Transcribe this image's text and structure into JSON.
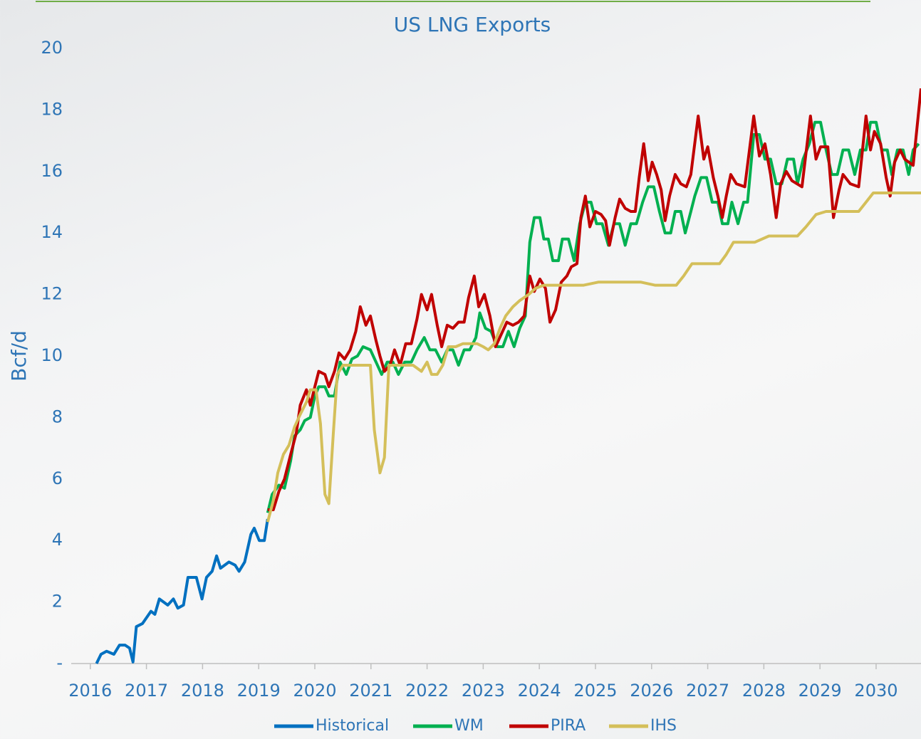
{
  "chart_data": {
    "type": "line",
    "title": "US LNG Exports",
    "y_label": "Bcf/d",
    "xlim": [
      2015.66,
      2030.8
    ],
    "ylim": [
      0,
      20
    ],
    "xticks": [
      2016,
      2017,
      2018,
      2019,
      2020,
      2021,
      2022,
      2023,
      2024,
      2025,
      2026,
      2027,
      2028,
      2029,
      2030
    ],
    "yticks": [
      {
        "value": 0,
        "label": "-"
      },
      2,
      4,
      6,
      8,
      10,
      12,
      14,
      16,
      18,
      20
    ],
    "grid": false,
    "legend": "bottom",
    "series": [
      {
        "name": "Historical",
        "color": "#0070c0",
        "x": [
          2016.11,
          2016.19,
          2016.29,
          2016.42,
          2016.52,
          2016.62,
          2016.7,
          2016.76,
          2016.82,
          2016.93,
          2017.08,
          2017.15,
          2017.23,
          2017.38,
          2017.48,
          2017.56,
          2017.66,
          2017.74,
          2017.89,
          2017.99,
          2018.07,
          2018.17,
          2018.25,
          2018.32,
          2018.47,
          2018.58,
          2018.65,
          2018.75,
          2018.86,
          2018.92,
          2019.01,
          2019.1,
          2019.16
        ],
        "values": [
          0,
          0.3,
          0.4,
          0.3,
          0.6,
          0.6,
          0.5,
          0.05,
          1.2,
          1.3,
          1.7,
          1.6,
          2.1,
          1.9,
          2.1,
          1.8,
          1.9,
          2.8,
          2.8,
          2.1,
          2.8,
          3.0,
          3.5,
          3.1,
          3.3,
          3.2,
          3.0,
          3.3,
          4.2,
          4.4,
          4.0,
          4.0,
          4.7
        ]
      },
      {
        "name": "WM",
        "color": "#00b050",
        "x": [
          2019.16,
          2019.24,
          2019.36,
          2019.46,
          2019.57,
          2019.64,
          2019.74,
          2019.82,
          2019.92,
          2020.0,
          2020.07,
          2020.18,
          2020.25,
          2020.35,
          2020.45,
          2020.56,
          2020.66,
          2020.76,
          2020.86,
          2020.99,
          2021.09,
          2021.19,
          2021.29,
          2021.39,
          2021.49,
          2021.6,
          2021.72,
          2021.82,
          2021.95,
          2022.05,
          2022.15,
          2022.26,
          2022.36,
          2022.46,
          2022.56,
          2022.66,
          2022.76,
          2022.87,
          2022.94,
          2023.04,
          2023.14,
          2023.25,
          2023.35,
          2023.45,
          2023.55,
          2023.65,
          2023.75,
          2023.83,
          2023.91,
          2024.01,
          2024.08,
          2024.16,
          2024.24,
          2024.34,
          2024.41,
          2024.52,
          2024.62,
          2024.72,
          2024.82,
          2024.92,
          2025.02,
          2025.12,
          2025.23,
          2025.33,
          2025.43,
          2025.53,
          2025.63,
          2025.73,
          2025.84,
          2025.94,
          2026.04,
          2026.14,
          2026.24,
          2026.34,
          2026.42,
          2026.52,
          2026.6,
          2026.7,
          2026.77,
          2026.88,
          2026.98,
          2027.08,
          2027.18,
          2027.26,
          2027.36,
          2027.43,
          2027.54,
          2027.64,
          2027.71,
          2027.82,
          2027.92,
          2028.02,
          2028.12,
          2028.22,
          2028.32,
          2028.42,
          2028.53,
          2028.6,
          2028.7,
          2028.81,
          2028.91,
          2029.01,
          2029.11,
          2029.21,
          2029.31,
          2029.41,
          2029.51,
          2029.62,
          2029.72,
          2029.82,
          2029.9,
          2030.0,
          2030.1,
          2030.2,
          2030.28,
          2030.38,
          2030.48,
          2030.58,
          2030.66,
          2030.76
        ],
        "values": [
          4.9,
          5.5,
          5.8,
          5.7,
          6.6,
          7.4,
          7.6,
          7.9,
          8.0,
          8.7,
          9.0,
          9.0,
          8.7,
          8.7,
          9.8,
          9.4,
          9.9,
          10.0,
          10.3,
          10.2,
          9.8,
          9.4,
          9.8,
          9.8,
          9.4,
          9.8,
          9.8,
          10.2,
          10.6,
          10.2,
          10.2,
          9.8,
          10.2,
          10.2,
          9.7,
          10.2,
          10.2,
          10.6,
          11.4,
          10.9,
          10.8,
          10.3,
          10.3,
          10.8,
          10.3,
          10.9,
          11.3,
          13.7,
          14.5,
          14.5,
          13.8,
          13.8,
          13.1,
          13.1,
          13.8,
          13.8,
          13.1,
          14.3,
          15.0,
          15.0,
          14.3,
          14.3,
          13.6,
          14.3,
          14.3,
          13.6,
          14.3,
          14.3,
          15.0,
          15.5,
          15.5,
          14.7,
          14.0,
          14.0,
          14.7,
          14.7,
          14.0,
          14.7,
          15.2,
          15.8,
          15.8,
          15.0,
          15.0,
          14.3,
          14.3,
          15.0,
          14.3,
          15.0,
          15.0,
          17.2,
          17.2,
          16.4,
          16.4,
          15.6,
          15.6,
          16.4,
          16.4,
          15.6,
          16.4,
          16.9,
          17.6,
          17.6,
          16.7,
          15.9,
          15.9,
          16.7,
          16.7,
          15.9,
          16.7,
          16.7,
          17.6,
          17.6,
          16.7,
          16.7,
          15.9,
          16.7,
          16.7,
          15.9,
          16.7,
          16.9
        ]
      },
      {
        "name": "PIRA",
        "color": "#c00000",
        "x": [
          2019.16,
          2019.26,
          2019.36,
          2019.46,
          2019.57,
          2019.67,
          2019.74,
          2019.85,
          2019.92,
          2020.0,
          2020.07,
          2020.18,
          2020.25,
          2020.35,
          2020.43,
          2020.53,
          2020.63,
          2020.73,
          2020.81,
          2020.91,
          2020.99,
          2021.09,
          2021.16,
          2021.24,
          2021.34,
          2021.42,
          2021.52,
          2021.62,
          2021.72,
          2021.82,
          2021.9,
          2022.0,
          2022.08,
          2022.18,
          2022.26,
          2022.36,
          2022.46,
          2022.56,
          2022.66,
          2022.74,
          2022.84,
          2022.92,
          2023.02,
          2023.12,
          2023.22,
          2023.32,
          2023.42,
          2023.53,
          2023.63,
          2023.73,
          2023.83,
          2023.91,
          2024.01,
          2024.11,
          2024.19,
          2024.29,
          2024.39,
          2024.49,
          2024.57,
          2024.67,
          2024.74,
          2024.82,
          2024.9,
          2025.0,
          2025.1,
          2025.18,
          2025.25,
          2025.35,
          2025.43,
          2025.53,
          2025.63,
          2025.71,
          2025.78,
          2025.86,
          2025.94,
          2026.01,
          2026.09,
          2026.17,
          2026.24,
          2026.32,
          2026.42,
          2026.52,
          2026.62,
          2026.7,
          2026.83,
          2026.93,
          2027.0,
          2027.1,
          2027.18,
          2027.26,
          2027.33,
          2027.41,
          2027.51,
          2027.66,
          2027.82,
          2027.92,
          2028.02,
          2028.12,
          2028.22,
          2028.3,
          2028.4,
          2028.5,
          2028.68,
          2028.83,
          2028.93,
          2029.01,
          2029.14,
          2029.24,
          2029.34,
          2029.41,
          2029.54,
          2029.69,
          2029.82,
          2029.9,
          2029.97,
          2030.08,
          2030.18,
          2030.25,
          2030.33,
          2030.43,
          2030.51,
          2030.66,
          2030.8
        ],
        "values": [
          5.0,
          5.0,
          5.6,
          6.0,
          6.8,
          7.5,
          8.4,
          8.9,
          8.4,
          9.0,
          9.5,
          9.4,
          9.0,
          9.5,
          10.1,
          9.9,
          10.2,
          10.8,
          11.6,
          11.0,
          11.3,
          10.5,
          10.0,
          9.5,
          9.7,
          10.2,
          9.7,
          10.4,
          10.4,
          11.2,
          12.0,
          11.5,
          12.0,
          11.0,
          10.3,
          11.0,
          10.9,
          11.1,
          11.1,
          11.9,
          12.6,
          11.6,
          12.0,
          11.3,
          10.3,
          10.7,
          11.1,
          11.0,
          11.1,
          11.3,
          12.6,
          12.1,
          12.5,
          12.2,
          11.1,
          11.5,
          12.4,
          12.6,
          12.9,
          13.0,
          14.5,
          15.2,
          14.2,
          14.7,
          14.6,
          14.4,
          13.6,
          14.5,
          15.1,
          14.8,
          14.7,
          14.7,
          15.8,
          16.9,
          15.7,
          16.3,
          15.9,
          15.4,
          14.4,
          15.2,
          15.9,
          15.6,
          15.5,
          15.9,
          17.8,
          16.4,
          16.8,
          15.8,
          15.2,
          14.5,
          15.2,
          15.9,
          15.6,
          15.5,
          17.8,
          16.5,
          16.9,
          15.9,
          14.5,
          15.6,
          16.0,
          15.7,
          15.5,
          17.8,
          16.4,
          16.8,
          16.8,
          14.5,
          15.4,
          15.9,
          15.6,
          15.5,
          17.8,
          16.7,
          17.3,
          16.9,
          15.8,
          15.2,
          16.3,
          16.7,
          16.4,
          16.2,
          18.7
        ]
      },
      {
        "name": "IHS",
        "color": "#d4bf5a",
        "x": [
          2019.16,
          2019.26,
          2019.34,
          2019.44,
          2019.54,
          2019.64,
          2019.74,
          2019.85,
          2019.92,
          2020.02,
          2020.1,
          2020.18,
          2020.25,
          2020.33,
          2020.4,
          2020.5,
          2020.61,
          2020.73,
          2020.99,
          2021.06,
          2021.16,
          2021.24,
          2021.32,
          2021.45,
          2021.57,
          2021.75,
          2021.9,
          2022.0,
          2022.08,
          2022.18,
          2022.28,
          2022.38,
          2022.51,
          2022.64,
          2022.76,
          2022.89,
          2023.0,
          2023.09,
          2023.2,
          2023.3,
          2023.4,
          2023.53,
          2023.65,
          2023.81,
          2023.93,
          2024.08,
          2024.29,
          2024.79,
          2025.05,
          2025.81,
          2026.06,
          2026.44,
          2026.57,
          2026.72,
          2026.95,
          2027.21,
          2027.33,
          2027.46,
          2027.84,
          2028.09,
          2028.6,
          2028.75,
          2028.93,
          2029.11,
          2029.69,
          2029.82,
          2029.95,
          2030.8
        ],
        "values": [
          4.6,
          5.3,
          6.2,
          6.8,
          7.1,
          7.7,
          8.1,
          8.5,
          8.9,
          8.9,
          7.8,
          5.5,
          5.2,
          7.5,
          9.4,
          9.7,
          9.7,
          9.7,
          9.7,
          7.6,
          6.2,
          6.7,
          9.7,
          9.7,
          9.7,
          9.7,
          9.5,
          9.8,
          9.4,
          9.4,
          9.7,
          10.3,
          10.3,
          10.4,
          10.4,
          10.4,
          10.3,
          10.2,
          10.4,
          10.9,
          11.3,
          11.6,
          11.8,
          12.0,
          12.2,
          12.3,
          12.3,
          12.3,
          12.4,
          12.4,
          12.3,
          12.3,
          12.6,
          13.0,
          13.0,
          13.0,
          13.3,
          13.7,
          13.7,
          13.9,
          13.9,
          14.2,
          14.6,
          14.7,
          14.7,
          15.0,
          15.3,
          15.3
        ]
      }
    ]
  }
}
